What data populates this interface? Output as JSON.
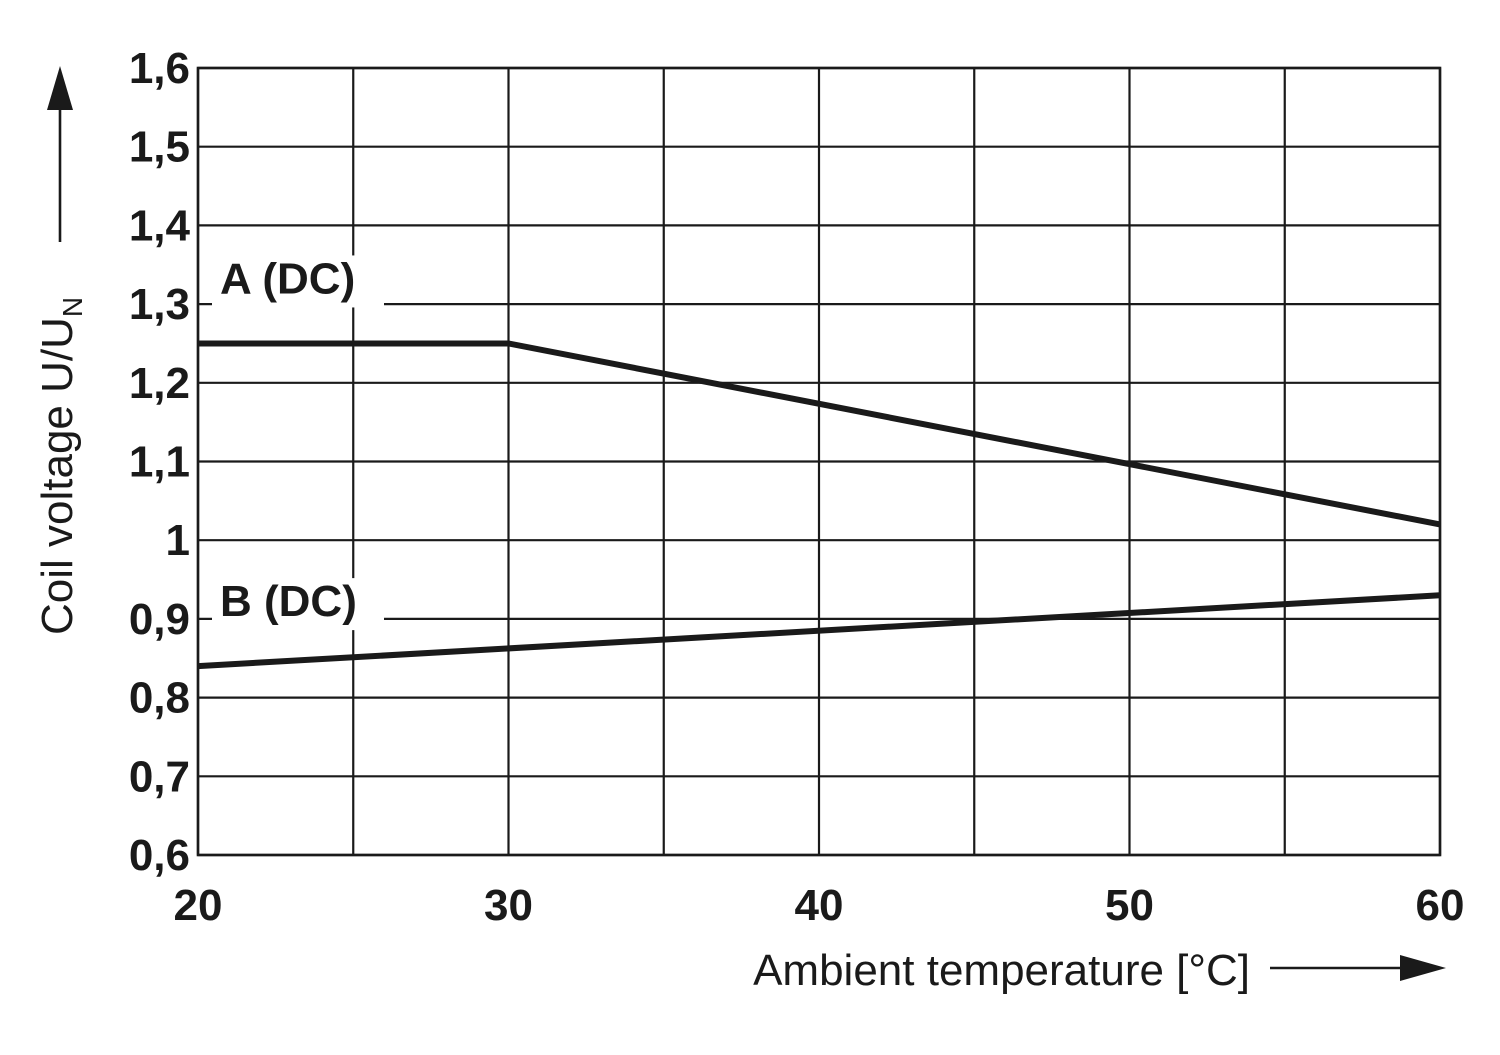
{
  "chart_data": {
    "type": "line",
    "xlabel": "Ambient temperature [°C]",
    "ylabel": "Coil voltage U/U",
    "ylabel_subscript": "N",
    "xlim": [
      20,
      60
    ],
    "ylim": [
      0.6,
      1.6
    ],
    "x_ticks": [
      {
        "value": 20,
        "label": "20"
      },
      {
        "value": 30,
        "label": "30"
      },
      {
        "value": 40,
        "label": "40"
      },
      {
        "value": 50,
        "label": "50"
      },
      {
        "value": 60,
        "label": "60"
      }
    ],
    "x_grid": [
      20,
      25,
      30,
      35,
      40,
      45,
      50,
      55,
      60
    ],
    "y_ticks": [
      {
        "value": 0.6,
        "label": "0,6"
      },
      {
        "value": 0.7,
        "label": "0,7"
      },
      {
        "value": 0.8,
        "label": "0,8"
      },
      {
        "value": 0.9,
        "label": "0,9"
      },
      {
        "value": 1.0,
        "label": "1"
      },
      {
        "value": 1.1,
        "label": "1,1"
      },
      {
        "value": 1.2,
        "label": "1,2"
      },
      {
        "value": 1.3,
        "label": "1,3"
      },
      {
        "value": 1.4,
        "label": "1,4"
      },
      {
        "value": 1.5,
        "label": "1,5"
      },
      {
        "value": 1.6,
        "label": "1,6"
      }
    ],
    "grid": true,
    "series": [
      {
        "name": "A (DC)",
        "x": [
          20,
          30,
          60
        ],
        "y": [
          1.25,
          1.25,
          1.02
        ]
      },
      {
        "name": "B (DC)",
        "x": [
          20,
          60
        ],
        "y": [
          0.84,
          0.93
        ]
      }
    ]
  }
}
